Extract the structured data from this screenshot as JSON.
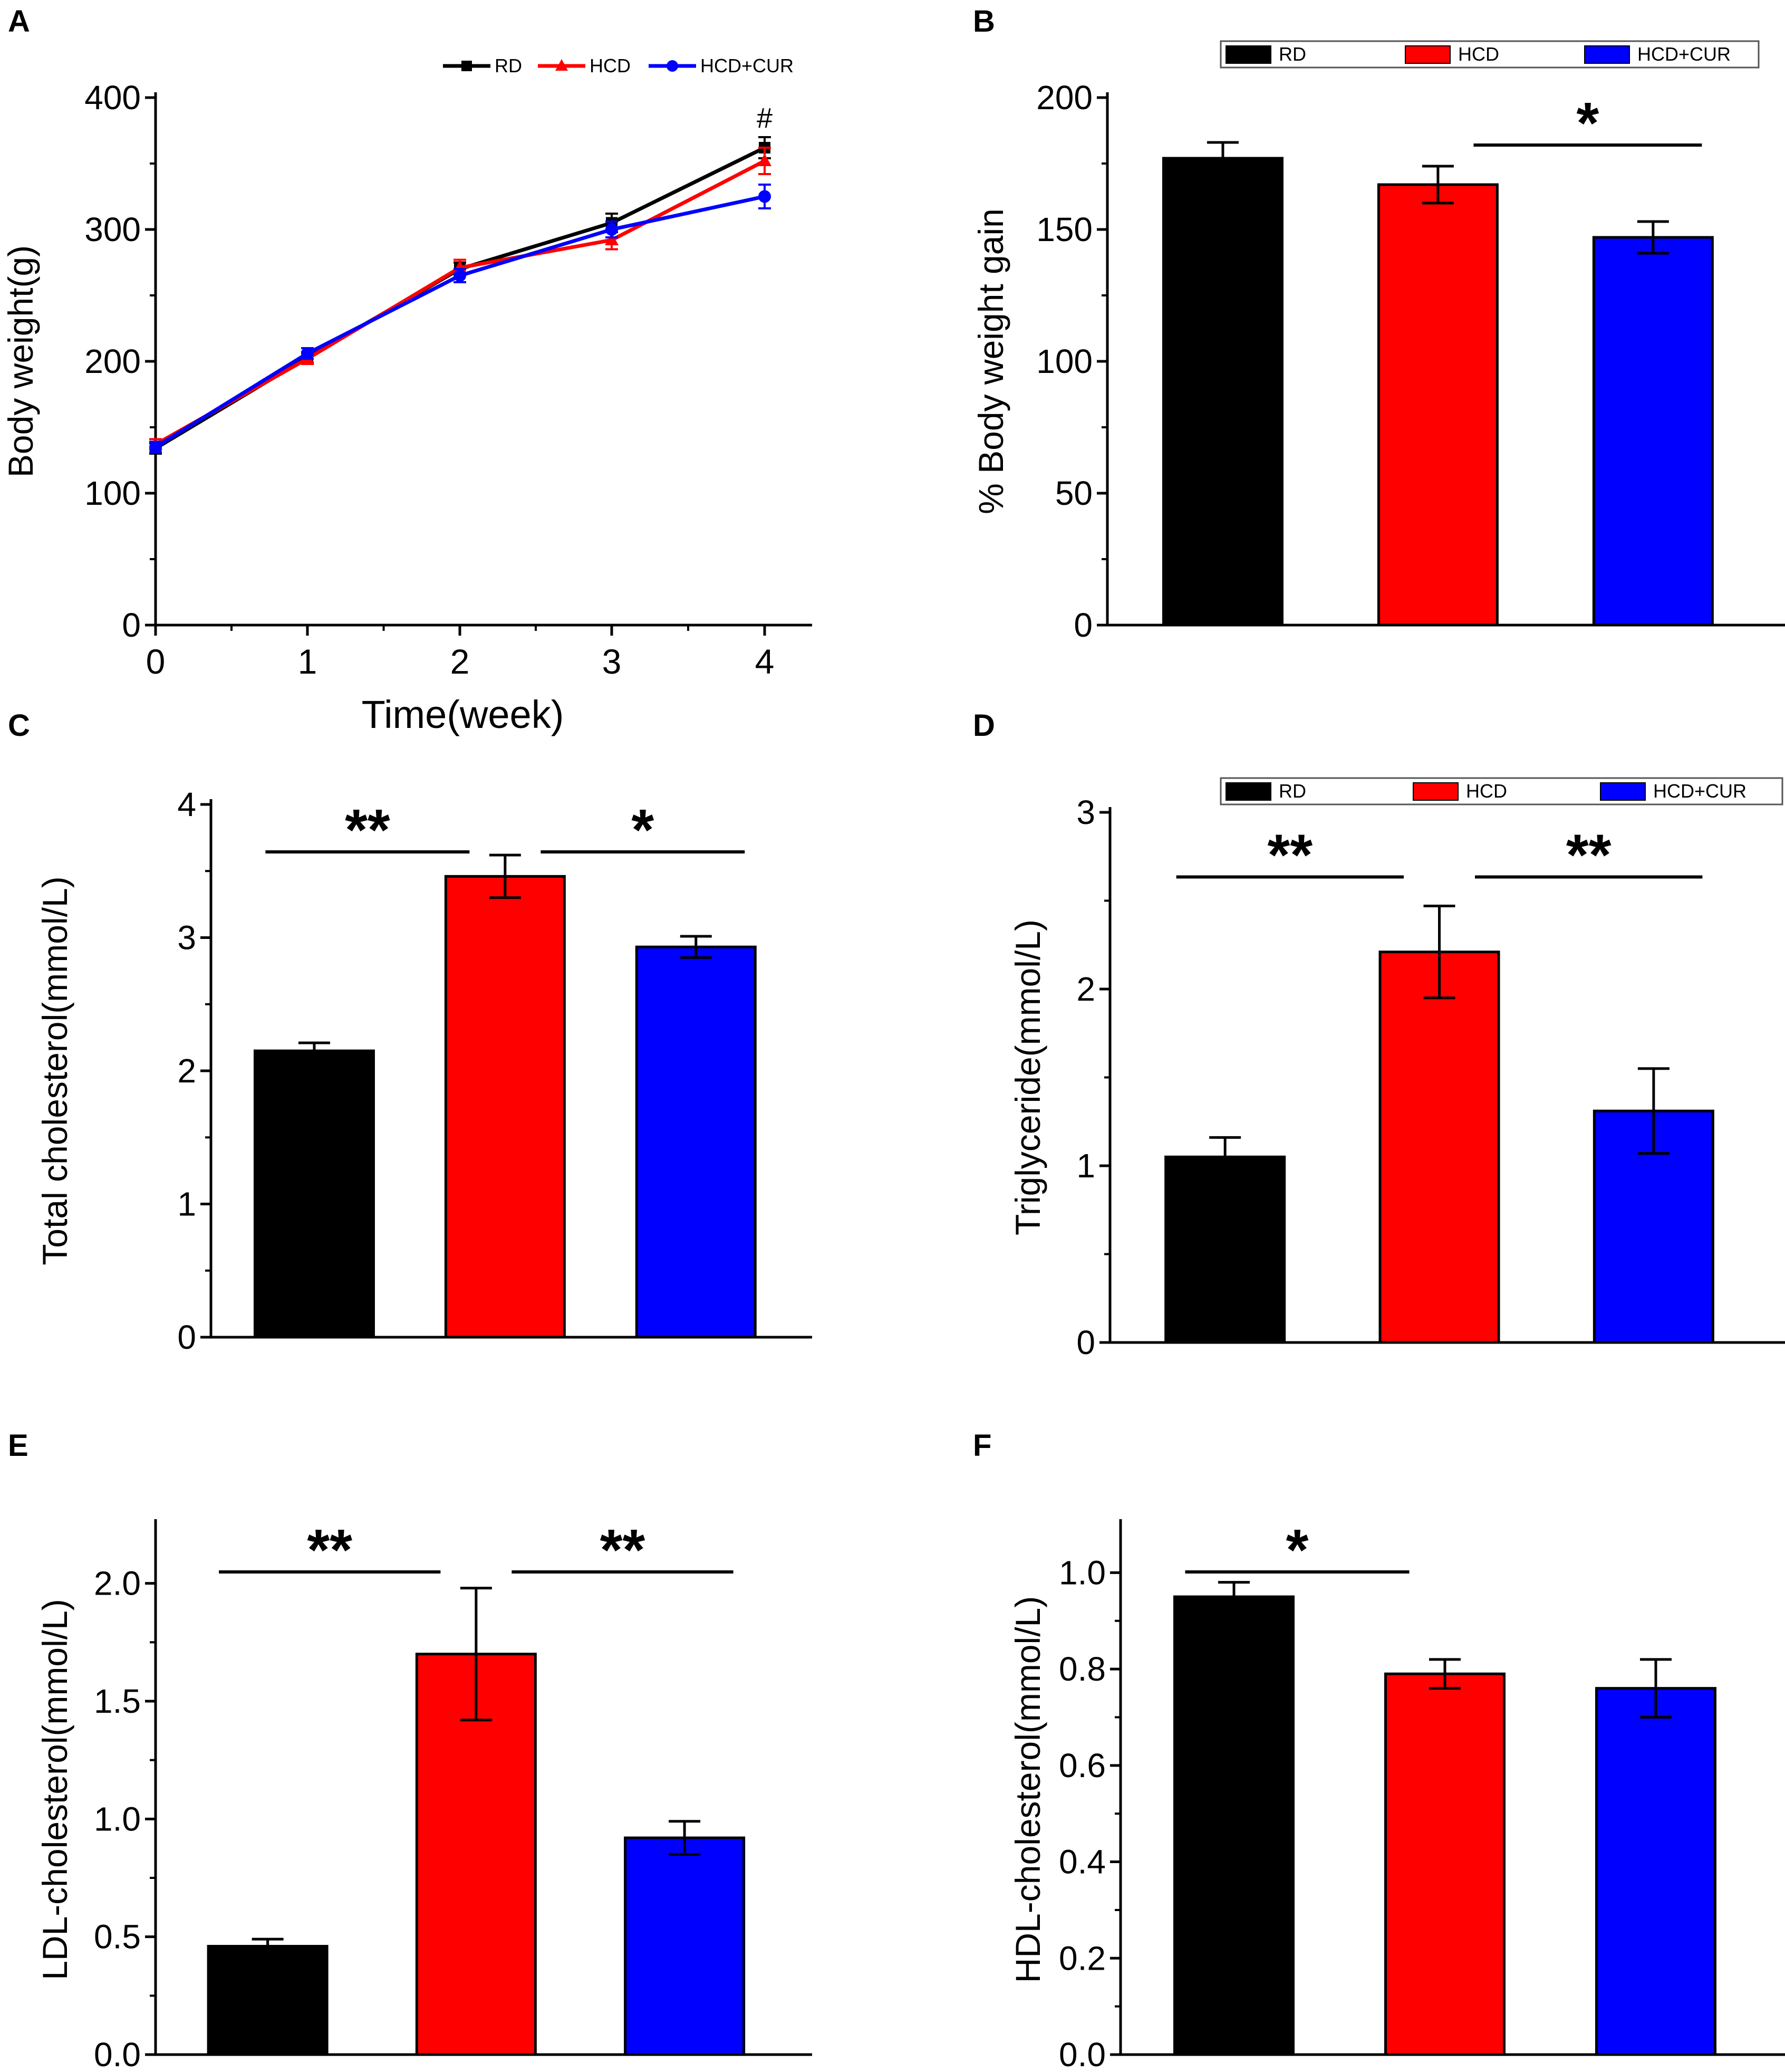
{
  "colors": {
    "RD": "#000000",
    "HCD": "#ff0000",
    "HCD+CUR": "#0000ff"
  },
  "chart_data": [
    {
      "panel": "A",
      "type": "line",
      "xlabel": "Time(week)",
      "ylabel": "Body weight(g)",
      "x": [
        0,
        1,
        2,
        3,
        4
      ],
      "xticks": [
        "0",
        "1",
        "2",
        "3",
        "4"
      ],
      "yticks": [
        "0",
        "100",
        "200",
        "300",
        "400"
      ],
      "ylim": [
        0,
        400
      ],
      "legend": [
        "RD",
        "HCD",
        "HCD+CUR"
      ],
      "series": [
        {
          "name": "RD",
          "values": [
            134,
            203,
            270,
            305,
            362
          ],
          "errors": [
            4,
            4,
            5,
            7,
            8
          ]
        },
        {
          "name": "HCD",
          "values": [
            137,
            202,
            271,
            292,
            352
          ],
          "errors": [
            4,
            4,
            6,
            7,
            10
          ]
        },
        {
          "name": "HCD+CUR",
          "values": [
            135,
            206,
            265,
            300,
            325
          ],
          "errors": [
            4,
            4,
            5,
            6,
            9
          ]
        }
      ],
      "annotations": [
        {
          "text": "#",
          "x": 4
        }
      ]
    },
    {
      "panel": "B",
      "type": "bar",
      "ylabel": "% Body weight gain",
      "categories": [
        "RD",
        "HCD",
        "HCD+CUR"
      ],
      "values": [
        177,
        167,
        147
      ],
      "errors": [
        6,
        7,
        6
      ],
      "yticks": [
        "0",
        "50",
        "100",
        "150",
        "200"
      ],
      "ylim": [
        0,
        200
      ],
      "legend": [
        "RD",
        "HCD",
        "HCD+CUR"
      ],
      "significance": [
        {
          "from": 1,
          "to": 2,
          "label": "*"
        }
      ]
    },
    {
      "panel": "C",
      "type": "bar",
      "ylabel": "Total cholesterol(mmol/L)",
      "categories": [
        "RD",
        "HCD",
        "HCD+CUR"
      ],
      "values": [
        2.15,
        3.46,
        2.93
      ],
      "errors": [
        0.06,
        0.16,
        0.08
      ],
      "yticks": [
        "0",
        "1",
        "2",
        "3",
        "4"
      ],
      "ylim": [
        0,
        4
      ],
      "significance": [
        {
          "from": 0,
          "to": 1,
          "label": "**"
        },
        {
          "from": 1,
          "to": 2,
          "label": "*"
        }
      ]
    },
    {
      "panel": "D",
      "type": "bar",
      "ylabel": "Triglyceride(mmol/L)",
      "categories": [
        "RD",
        "HCD",
        "HCD+CUR"
      ],
      "values": [
        1.05,
        2.21,
        1.31
      ],
      "errors": [
        0.11,
        0.26,
        0.24
      ],
      "yticks": [
        "0",
        "1",
        "2",
        "3"
      ],
      "ylim": [
        0,
        3
      ],
      "legend": [
        "RD",
        "HCD",
        "HCD+CUR"
      ],
      "significance": [
        {
          "from": 0,
          "to": 1,
          "label": "**"
        },
        {
          "from": 1,
          "to": 2,
          "label": "**"
        }
      ]
    },
    {
      "panel": "E",
      "type": "bar",
      "ylabel": "LDL-cholesterol(mmol/L)",
      "categories": [
        "RD",
        "HCD",
        "HCD+CUR"
      ],
      "values": [
        0.46,
        1.7,
        0.92
      ],
      "errors": [
        0.03,
        0.28,
        0.07
      ],
      "yticks": [
        "0.0",
        "0.5",
        "1.0",
        "1.5",
        "2.0"
      ],
      "ylim": [
        0,
        2.25
      ],
      "significance": [
        {
          "from": 0,
          "to": 1,
          "label": "**"
        },
        {
          "from": 1,
          "to": 2,
          "label": "**"
        }
      ]
    },
    {
      "panel": "F",
      "type": "bar",
      "ylabel": "HDL-cholesterol(mmol/L)",
      "categories": [
        "RD",
        "HCD",
        "HCD+CUR"
      ],
      "values": [
        0.95,
        0.79,
        0.76
      ],
      "errors": [
        0.03,
        0.03,
        0.06
      ],
      "yticks": [
        "0.0",
        "0.2",
        "0.4",
        "0.6",
        "0.8",
        "1.0"
      ],
      "ylim": [
        0,
        1.1
      ],
      "significance": [
        {
          "from": 0,
          "to": 1,
          "label": "*"
        }
      ]
    }
  ]
}
